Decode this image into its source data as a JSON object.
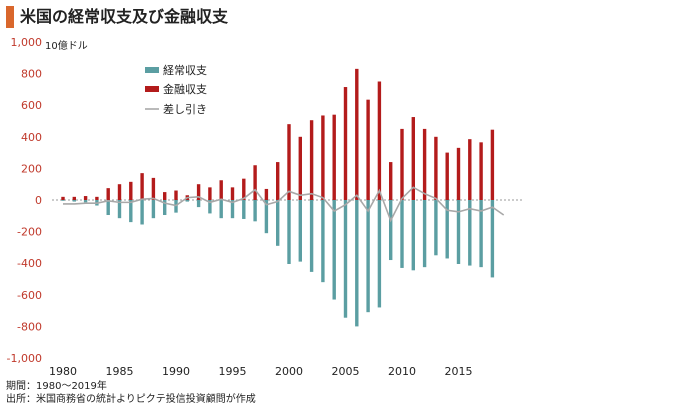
{
  "title": "米国の経常収支及び金融収支",
  "unit_label": "10億ドル",
  "footer": {
    "period": "期間：1980～2019年",
    "source": "出所：米国商務省の統計よりピクテ投信投資顧問が作成"
  },
  "colors": {
    "current": "#5b9ea2",
    "financial": "#b31b1b",
    "difference": "#a8a8a8",
    "title_accent": "#d9672c",
    "y_tick": "#c0392b"
  },
  "chart_data": {
    "type": "bar",
    "title": "米国の経常収支及び金融収支",
    "ylabel": "10億ドル",
    "xlabel": "",
    "ylim": [
      -1000,
      1000
    ],
    "yticks": [
      1000,
      800,
      600,
      400,
      200,
      0,
      -200,
      -400,
      -600,
      -800,
      -1000
    ],
    "ytick_labels": [
      "1,000",
      "800",
      "600",
      "400",
      "200",
      "0",
      "-200",
      "-400",
      "-600",
      "-800",
      "-1,000"
    ],
    "xticks": [
      1980,
      1985,
      1990,
      1995,
      2000,
      2005,
      2010,
      2015
    ],
    "x": [
      1980,
      1981,
      1982,
      1983,
      1984,
      1985,
      1986,
      1987,
      1988,
      1989,
      1990,
      1991,
      1992,
      1993,
      1994,
      1995,
      1996,
      1997,
      1998,
      1999,
      2000,
      2001,
      2002,
      2003,
      2004,
      2005,
      2006,
      2007,
      2008,
      2009,
      2010,
      2011,
      2012,
      2013,
      2014,
      2015,
      2016,
      2017,
      2018,
      2019
    ],
    "legend_position": "upper-left",
    "series": [
      {
        "name": "経常収支",
        "type": "bar",
        "values": [
          -5,
          -10,
          -15,
          -35,
          -95,
          -115,
          -140,
          -155,
          -115,
          -95,
          -80,
          -10,
          -45,
          -85,
          -115,
          -115,
          -120,
          -135,
          -210,
          -290,
          -405,
          -390,
          -455,
          -520,
          -630,
          -745,
          -800,
          -710,
          -680,
          -380,
          -430,
          -445,
          -425,
          -350,
          -370,
          -405,
          -415,
          -425,
          -490,
          null
        ]
      },
      {
        "name": "金融収支",
        "type": "bar",
        "values": [
          20,
          20,
          25,
          20,
          75,
          100,
          115,
          170,
          140,
          50,
          60,
          30,
          100,
          80,
          125,
          80,
          135,
          220,
          70,
          240,
          480,
          400,
          505,
          535,
          540,
          715,
          830,
          635,
          750,
          240,
          450,
          525,
          450,
          400,
          300,
          330,
          385,
          365,
          445,
          null
        ]
      },
      {
        "name": "差し引き",
        "type": "line",
        "values": [
          -25,
          -25,
          -20,
          -20,
          -5,
          -15,
          -15,
          5,
          10,
          -20,
          -35,
          15,
          20,
          -15,
          5,
          -15,
          10,
          65,
          -30,
          -10,
          55,
          30,
          40,
          15,
          -70,
          -30,
          30,
          -70,
          60,
          -130,
          10,
          80,
          40,
          10,
          -65,
          -75,
          -55,
          -70,
          -45,
          -95
        ]
      }
    ]
  }
}
